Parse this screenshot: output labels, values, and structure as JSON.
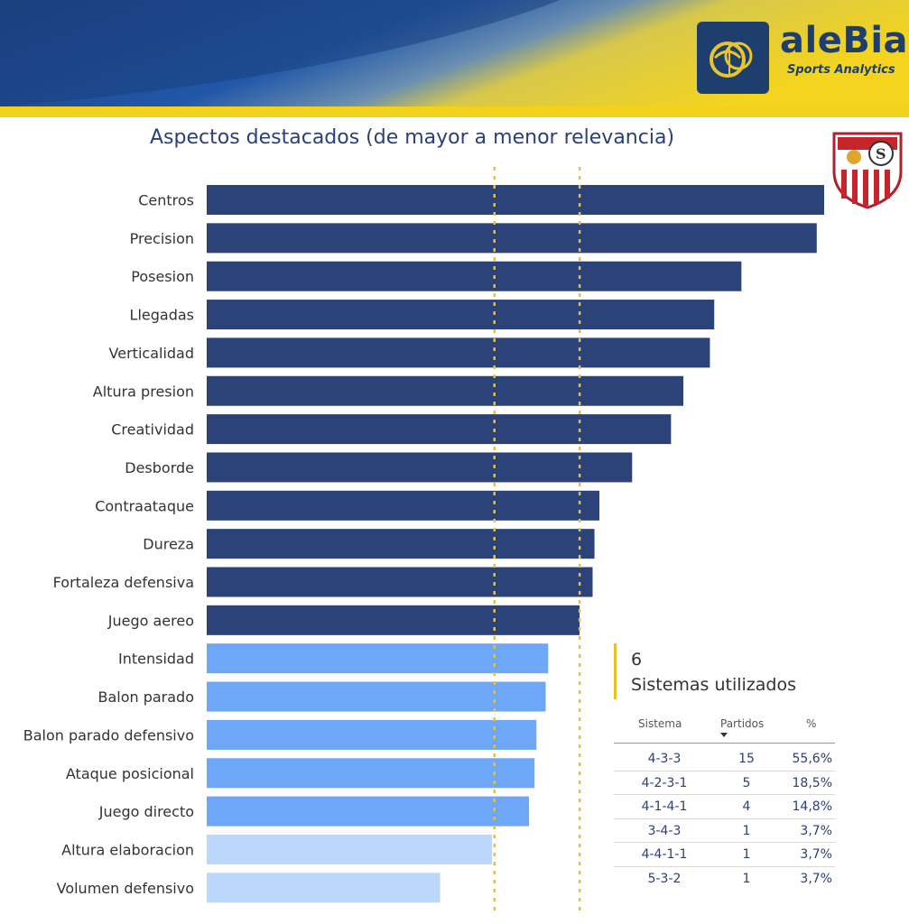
{
  "brand": {
    "name": "aleBia",
    "tagline": "Sports Analytics",
    "logo_icon": "brain-ball-icon",
    "crest_icon": "sevilla-crest-icon"
  },
  "colors": {
    "strong": "#2b4378",
    "medium": "#6ea6f8",
    "weak": "#bcd7fc",
    "reference_line": "#e2c04a",
    "banner_blue": "#1e4a8c",
    "banner_yellow": "#f3d426"
  },
  "chart_data": {
    "type": "bar",
    "orientation": "horizontal",
    "title": "Aspectos destacados (de mayor a menor relevancia)",
    "categories": [
      "Centros",
      "Precision",
      "Posesion",
      "Llegadas",
      "Verticalidad",
      "Altura presion",
      "Creatividad",
      "Desborde",
      "Contraataque",
      "Dureza",
      "Fortaleza defensiva",
      "Juego aereo",
      "Intensidad",
      "Balon parado",
      "Balon parado defensivo",
      "Ataque posicional",
      "Juego directo",
      "Altura elaboracion",
      "Volumen defensivo"
    ],
    "values": [
      100,
      98.8,
      86.6,
      82.2,
      81.5,
      77.2,
      75.2,
      68.9,
      63.6,
      62.8,
      62.5,
      60.4,
      55.3,
      54.9,
      53.4,
      53.1,
      52.2,
      46.2,
      37.8
    ],
    "tiers": [
      "strong",
      "strong",
      "strong",
      "strong",
      "strong",
      "strong",
      "strong",
      "strong",
      "strong",
      "strong",
      "strong",
      "strong",
      "medium",
      "medium",
      "medium",
      "medium",
      "medium",
      "weak",
      "weak"
    ],
    "reference_lines": [
      46.6,
      60.4
    ],
    "xlim": [
      0,
      100
    ],
    "grid": false,
    "legend": "none"
  },
  "systems_panel": {
    "count": "6",
    "label": "Sistemas utilizados",
    "headers": {
      "sistema": "Sistema",
      "partidos": "Partidos",
      "pct": "%"
    },
    "sort": "partidos-desc",
    "rows": [
      {
        "sistema": "4-3-3",
        "partidos": "15",
        "pct": "55,6%"
      },
      {
        "sistema": "4-2-3-1",
        "partidos": "5",
        "pct": "18,5%"
      },
      {
        "sistema": "4-1-4-1",
        "partidos": "4",
        "pct": "14,8%"
      },
      {
        "sistema": "3-4-3",
        "partidos": "1",
        "pct": "3,7%"
      },
      {
        "sistema": "4-4-1-1",
        "partidos": "1",
        "pct": "3,7%"
      },
      {
        "sistema": "5-3-2",
        "partidos": "1",
        "pct": "3,7%"
      }
    ]
  }
}
